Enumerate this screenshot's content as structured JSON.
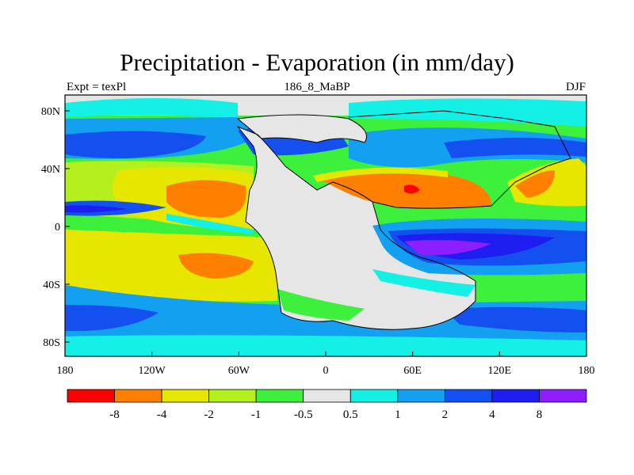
{
  "title": "Precipitation - Evaporation (in mm/day)",
  "left_subtitle": "Expt = texPl",
  "center_subtitle": "186_8_MaBP",
  "right_subtitle": "DJF",
  "x_ticks": [
    "180",
    "120W",
    "60W",
    "0",
    "60E",
    "120E",
    "180"
  ],
  "y_ticks": [
    "80N",
    "40N",
    "0",
    "40S",
    "80S"
  ],
  "colorbar": {
    "labels": [
      "-8",
      "-4",
      "-2",
      "-1",
      "-0.5",
      "0.5",
      "1",
      "2",
      "4",
      "8"
    ],
    "colors": [
      "#ff0000",
      "#ff8000",
      "#e6e600",
      "#b4f01e",
      "#3cf03c",
      "#e6e6e6",
      "#14f0e6",
      "#14a0f0",
      "#1450f0",
      "#1e1ef0",
      "#8c1eff"
    ]
  },
  "chart_data": {
    "type": "heatmap",
    "projection": "cylindrical-equidistant",
    "lon_range": [
      -180,
      180
    ],
    "lat_range": [
      -90,
      90
    ],
    "x_ticks": [
      "180",
      "120W",
      "60W",
      "0",
      "60E",
      "120E",
      "180"
    ],
    "y_ticks": [
      "80N",
      "40N",
      "0",
      "40S",
      "80S"
    ],
    "contour_levels": [
      -8,
      -4,
      -2,
      -1,
      -0.5,
      0.5,
      1,
      2,
      4,
      8
    ],
    "colors": [
      "#ff0000",
      "#ff8000",
      "#e6e600",
      "#b4f01e",
      "#3cf03c",
      "#e6e6e6",
      "#14f0e6",
      "#14a0f0",
      "#1450f0",
      "#1e1ef0",
      "#8c1eff"
    ],
    "coastlines": true
  }
}
